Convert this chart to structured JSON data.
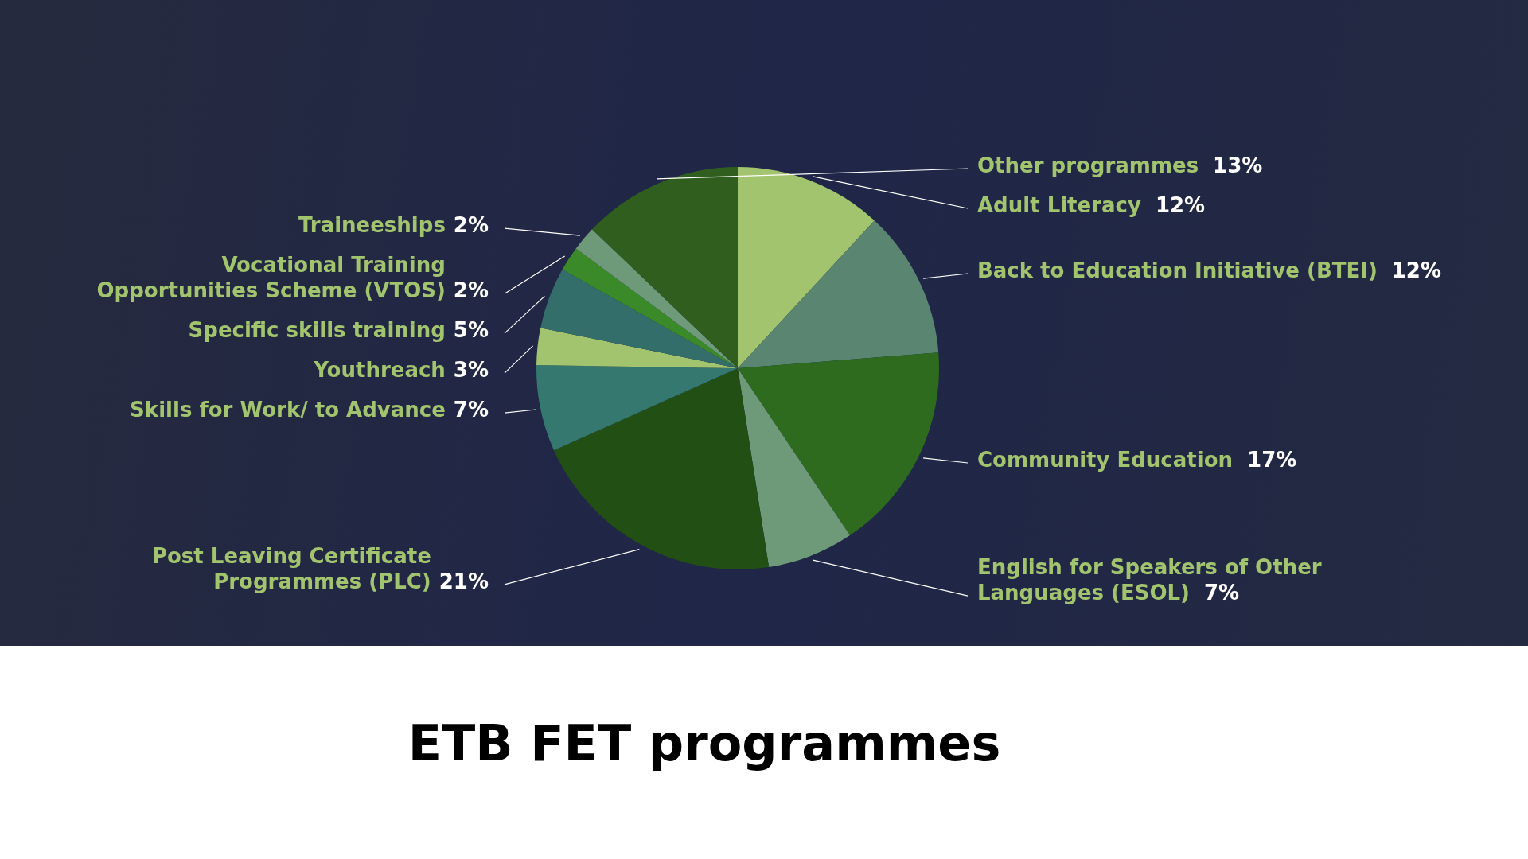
{
  "chart_data": {
    "type": "pie",
    "title": "ETB FET programmes",
    "categories": [
      "Adult Literacy",
      "Back to Education Initiative (BTEI)",
      "Community Education",
      "English for Speakers of Other Languages (ESOL)",
      "Post Leaving Certificate Programmes  (PLC)",
      "Skills for Work/ to Advance",
      "Youthreach",
      "Specific skills training",
      "Vocational Training Opportunities Scheme (VTOS)",
      "Traineeships",
      "Other programmes"
    ],
    "values": [
      12,
      12,
      17,
      7,
      21,
      7,
      3,
      5,
      2,
      2,
      13
    ],
    "value_labels": [
      "12%",
      "12%",
      "17%",
      "7%",
      "21%",
      "7%",
      "3%",
      "5%",
      "2%",
      "2%",
      "13%"
    ],
    "colors": [
      "#a3c46e",
      "#5a8570",
      "#2e6b1e",
      "#6f9a7a",
      "#224f14",
      "#347870",
      "#a3c46e",
      "#346e6a",
      "#3a8a2a",
      "#6f9a7a",
      "#2f5e1f"
    ]
  }
}
